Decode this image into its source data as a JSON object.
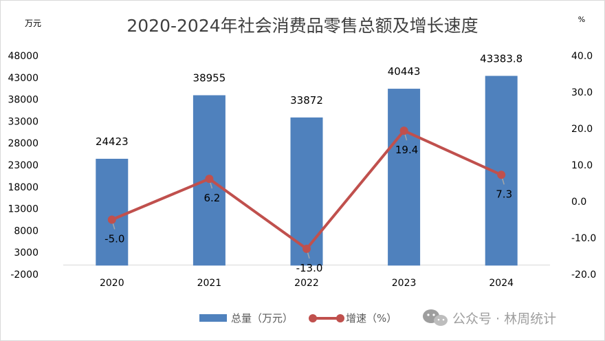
{
  "chart_data": {
    "type": "bar+line",
    "title": "2020-2024年社会消费品零售总额及增长速度",
    "left_axis_unit": "万元",
    "right_axis_unit": "%",
    "categories": [
      "2020",
      "2021",
      "2022",
      "2023",
      "2024"
    ],
    "left_axis": {
      "min": -2000,
      "max": 48000,
      "ticks": [
        "48000",
        "43000",
        "38000",
        "33000",
        "28000",
        "23000",
        "18000",
        "13000",
        "8000",
        "3000",
        "-2000"
      ]
    },
    "right_axis": {
      "min": -20,
      "max": 40,
      "ticks": [
        "40.0",
        "30.0",
        "20.0",
        "10.0",
        "0.0",
        "-10.0",
        "-20.0"
      ]
    },
    "series": [
      {
        "name": "总量（万元）",
        "type": "bar",
        "values": [
          24423,
          38955,
          33872,
          40443,
          43383.8
        ],
        "labels": [
          "24423",
          "38955",
          "33872",
          "40443",
          "43383.8"
        ],
        "color": "#4F81BD"
      },
      {
        "name": "增速（%）",
        "type": "line",
        "values": [
          -5.0,
          6.2,
          -13.0,
          19.4,
          7.3
        ],
        "labels": [
          "-5.0",
          "6.2",
          "-13.0",
          "19.4",
          "7.3"
        ],
        "color": "#C0504D"
      }
    ],
    "legend_position": "bottom",
    "grid": false
  },
  "watermark": {
    "text": "公众号 · 林周统计",
    "icon": "wechat-icon"
  }
}
